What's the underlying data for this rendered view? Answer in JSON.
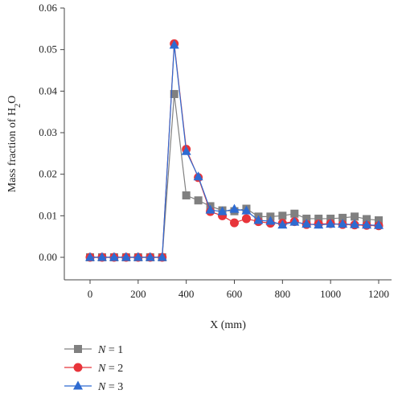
{
  "chart_data": {
    "type": "line",
    "title": "",
    "xlabel": "X (mm)",
    "ylabel_parts": [
      "Mass fraction of H",
      "2",
      "O"
    ],
    "xlim": [
      0,
      1200
    ],
    "ylim": [
      0,
      0.06
    ],
    "xticks": [
      0,
      200,
      400,
      600,
      800,
      1000,
      1200
    ],
    "yticks": [
      0,
      0.01,
      0.02,
      0.03,
      0.04,
      0.05,
      0.06
    ],
    "xtick_labels": [
      "0",
      "200",
      "400",
      "600",
      "800",
      "1000",
      "1200"
    ],
    "ytick_labels": [
      "0.00",
      "0.01",
      "0.02",
      "0.03",
      "0.04",
      "0.05",
      "0.06"
    ],
    "grid": false,
    "legend_position": "bottom-left",
    "x": [
      0,
      50,
      100,
      150,
      200,
      250,
      300,
      350,
      400,
      450,
      500,
      550,
      600,
      650,
      700,
      750,
      800,
      850,
      900,
      950,
      1000,
      1050,
      1100,
      1150,
      1200
    ],
    "series": [
      {
        "name": "N = 1",
        "name_var": "N",
        "name_rest": " = 1",
        "color": "#808080",
        "marker": "square",
        "values": [
          0,
          0,
          0,
          0,
          0,
          0,
          0,
          0.0393,
          0.0149,
          0.0137,
          0.0123,
          0.0113,
          0.0111,
          0.0117,
          0.0098,
          0.0098,
          0.01,
          0.0105,
          0.0093,
          0.0093,
          0.0093,
          0.0095,
          0.0098,
          0.0092,
          0.0089
        ]
      },
      {
        "name": "N = 2",
        "name_var": "N",
        "name_rest": " = 2",
        "color": "#e8343a",
        "marker": "circle",
        "values": [
          0,
          0,
          0,
          0,
          0,
          0,
          0,
          0.0514,
          0.026,
          0.0192,
          0.011,
          0.01,
          0.0083,
          0.0093,
          0.0086,
          0.0082,
          0.0082,
          0.0086,
          0.0079,
          0.008,
          0.0081,
          0.0079,
          0.0078,
          0.0077,
          0.0076
        ]
      },
      {
        "name": "N = 3",
        "name_var": "N",
        "name_rest": " = 3",
        "color": "#2e6bd1",
        "marker": "triangle",
        "values": [
          0,
          0,
          0,
          0,
          0,
          0,
          0,
          0.0511,
          0.0255,
          0.0194,
          0.0114,
          0.011,
          0.0116,
          0.0112,
          0.0089,
          0.0087,
          0.0078,
          0.0085,
          0.008,
          0.0078,
          0.008,
          0.008,
          0.0079,
          0.0078,
          0.0077
        ]
      }
    ]
  }
}
